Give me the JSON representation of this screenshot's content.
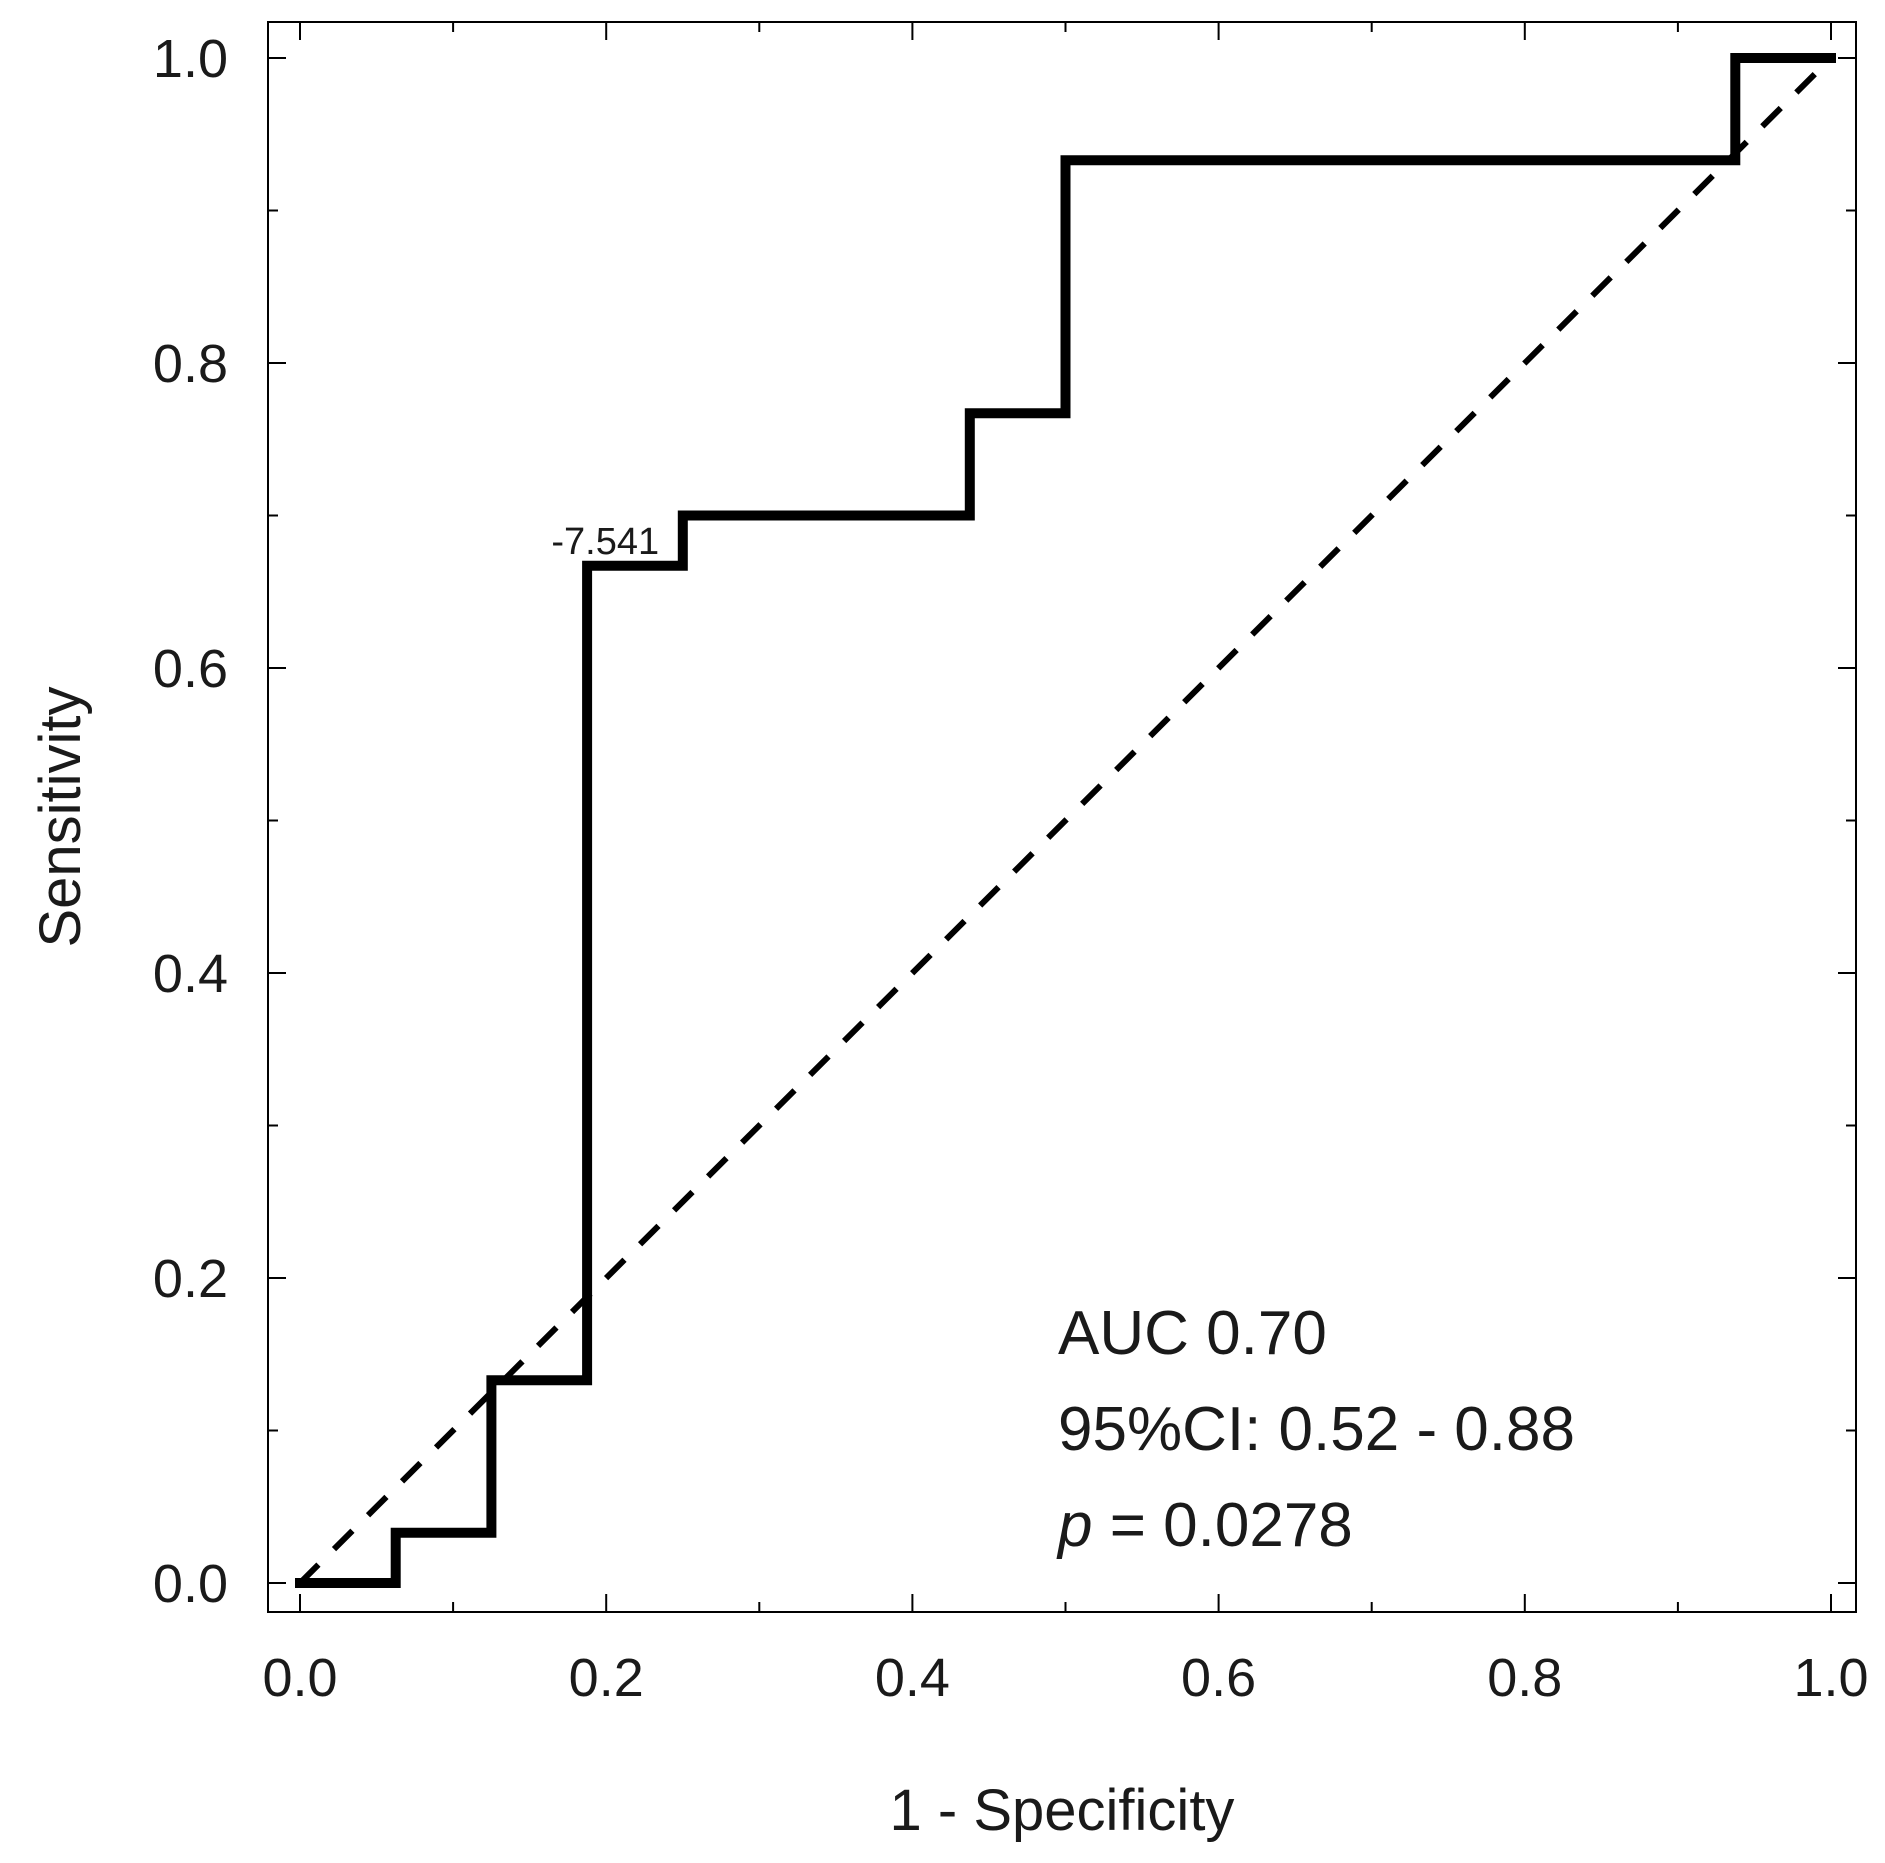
{
  "chart_data": {
    "type": "line",
    "title": "",
    "xlabel": "1 - Specificity",
    "ylabel": "Sensitivity",
    "xlim": [
      0.0,
      1.0
    ],
    "ylim": [
      0.0,
      1.0
    ],
    "xticks": [
      "0.0",
      "0.2",
      "0.4",
      "0.6",
      "0.8",
      "1.0"
    ],
    "yticks": [
      "0.0",
      "0.2",
      "0.4",
      "0.6",
      "0.8",
      "1.0"
    ],
    "grid": false,
    "series": [
      {
        "name": "ROC curve",
        "style": "solid-step",
        "color": "#000000",
        "x": [
          0.0,
          0.0625,
          0.0625,
          0.125,
          0.125,
          0.1875,
          0.1875,
          0.25,
          0.25,
          0.4375,
          0.4375,
          0.5,
          0.5,
          0.9375,
          0.9375,
          1.0
        ],
        "y": [
          0.0,
          0.0,
          0.033,
          0.033,
          0.133,
          0.133,
          0.667,
          0.667,
          0.7,
          0.7,
          0.767,
          0.767,
          0.933,
          0.933,
          1.0,
          1.0
        ]
      },
      {
        "name": "Reference line",
        "style": "dashed",
        "color": "#000000",
        "x": [
          0.0,
          1.0
        ],
        "y": [
          0.0,
          1.0
        ]
      }
    ],
    "cutoff": {
      "label": "-7.541",
      "x": 0.1875,
      "y": 0.667
    },
    "annotations": {
      "auc": "AUC 0.70",
      "ci": "95%CI: 0.52 - 0.88",
      "p_symbol": "p",
      "p_value": " = 0.0278"
    }
  }
}
